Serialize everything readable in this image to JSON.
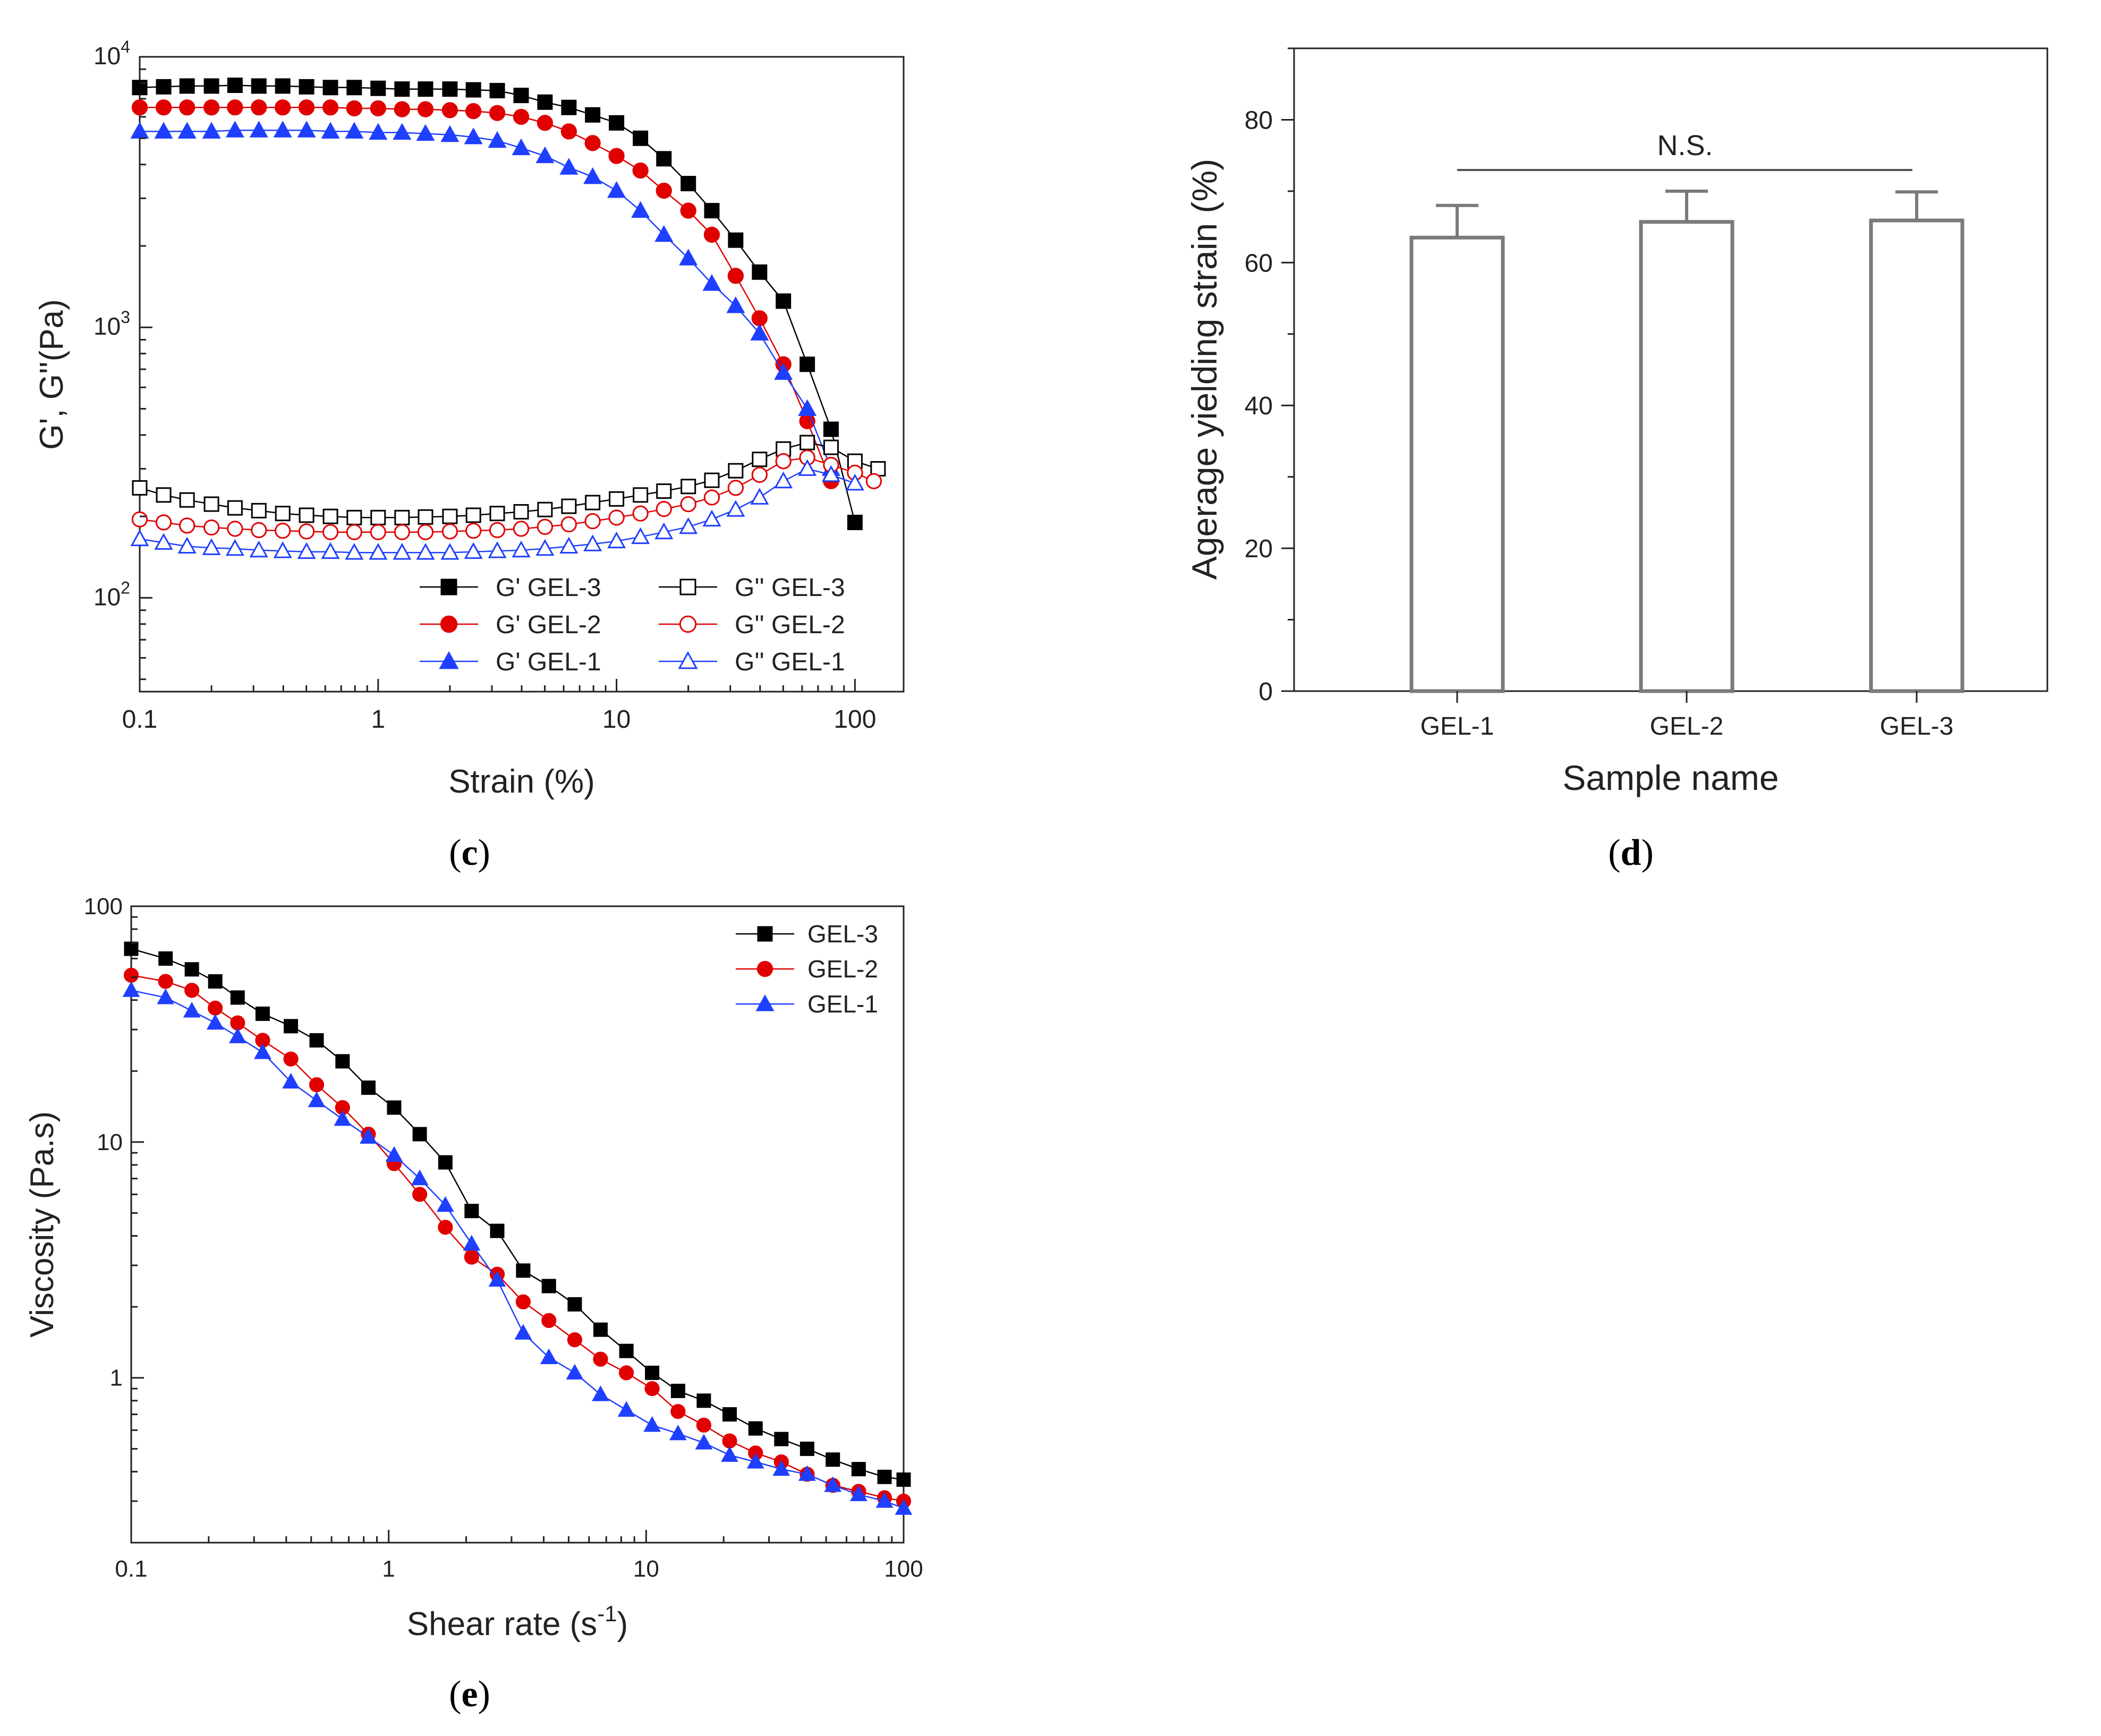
{
  "chart_data": [
    {
      "id": "c",
      "type": "scatter",
      "panel_label": "(c)",
      "panel_letter": "c",
      "xlabel": "Strain (%)",
      "ylabel": "G', G''(Pa)",
      "xscale": "log",
      "yscale": "log",
      "xlim": [
        0.1,
        160
      ],
      "ylim": [
        45,
        10000
      ],
      "xticks": [
        {
          "v": 0.1,
          "label": "0.1"
        },
        {
          "v": 1,
          "label": "1"
        },
        {
          "v": 10,
          "label": "10"
        },
        {
          "v": 100,
          "label": "100"
        }
      ],
      "yticks": [
        {
          "v": 100,
          "base": "10",
          "exp": "2"
        },
        {
          "v": 1000,
          "base": "10",
          "exp": "3"
        },
        {
          "v": 10000,
          "base": "10",
          "exp": "4"
        }
      ],
      "legend_position": "bottom-right",
      "series": [
        {
          "name": "G' GEL-3",
          "color": "#000000",
          "marker": "square",
          "filled": true,
          "x": [
            0.1,
            0.126,
            0.158,
            0.2,
            0.251,
            0.316,
            0.398,
            0.501,
            0.631,
            0.794,
            1,
            1.26,
            1.58,
            2,
            2.51,
            3.16,
            3.98,
            5.01,
            6.31,
            7.94,
            10,
            12.6,
            15.8,
            20,
            25.1,
            31.6,
            39.8,
            50.1,
            63.1,
            79.4,
            100
          ],
          "y": [
            7700,
            7750,
            7800,
            7800,
            7850,
            7800,
            7800,
            7750,
            7700,
            7700,
            7650,
            7600,
            7600,
            7600,
            7550,
            7500,
            7200,
            6800,
            6500,
            6100,
            5700,
            5000,
            4200,
            3400,
            2700,
            2100,
            1600,
            1250,
            730,
            420,
            190
          ]
        },
        {
          "name": "G' GEL-2",
          "color": "#e00000",
          "marker": "circle",
          "filled": true,
          "x": [
            0.1,
            0.126,
            0.158,
            0.2,
            0.251,
            0.316,
            0.398,
            0.501,
            0.631,
            0.794,
            1,
            1.26,
            1.58,
            2,
            2.51,
            3.16,
            3.98,
            5.01,
            6.31,
            7.94,
            10,
            12.6,
            15.8,
            20,
            25.1,
            31.6,
            39.8,
            50.1,
            63.1,
            79.4
          ],
          "y": [
            6500,
            6500,
            6500,
            6500,
            6500,
            6500,
            6500,
            6500,
            6500,
            6450,
            6450,
            6400,
            6400,
            6350,
            6300,
            6200,
            6000,
            5700,
            5300,
            4800,
            4300,
            3800,
            3200,
            2700,
            2200,
            1550,
            1080,
            730,
            450,
            270
          ]
        },
        {
          "name": "G' GEL-1",
          "color": "#1f3fff",
          "marker": "triangle",
          "filled": true,
          "x": [
            0.1,
            0.126,
            0.158,
            0.2,
            0.251,
            0.316,
            0.398,
            0.501,
            0.631,
            0.794,
            1,
            1.26,
            1.58,
            2,
            2.51,
            3.16,
            3.98,
            5.01,
            6.31,
            7.94,
            10,
            12.6,
            15.8,
            20,
            25.1,
            31.6,
            39.8,
            50.1,
            63.1,
            79.4
          ],
          "y": [
            5300,
            5300,
            5300,
            5300,
            5350,
            5350,
            5350,
            5350,
            5300,
            5300,
            5250,
            5250,
            5200,
            5150,
            5050,
            4900,
            4600,
            4300,
            3900,
            3600,
            3200,
            2700,
            2200,
            1800,
            1450,
            1200,
            950,
            680,
            500,
            300
          ]
        },
        {
          "name": "G'' GEL-3",
          "color": "#000000",
          "marker": "square",
          "filled": false,
          "x": [
            0.1,
            0.126,
            0.158,
            0.2,
            0.251,
            0.316,
            0.398,
            0.501,
            0.631,
            0.794,
            1,
            1.26,
            1.58,
            2,
            2.51,
            3.16,
            3.98,
            5.01,
            6.31,
            7.94,
            10,
            12.6,
            15.8,
            20,
            25.1,
            31.6,
            39.8,
            50.1,
            63.1,
            79.4,
            100,
            125
          ],
          "y": [
            255,
            240,
            230,
            222,
            215,
            210,
            205,
            202,
            200,
            198,
            198,
            198,
            199,
            200,
            202,
            205,
            208,
            212,
            218,
            225,
            232,
            240,
            248,
            258,
            272,
            295,
            325,
            355,
            375,
            360,
            320,
            300
          ]
        },
        {
          "name": "G'' GEL-2",
          "color": "#e00000",
          "marker": "circle",
          "filled": false,
          "x": [
            0.1,
            0.126,
            0.158,
            0.2,
            0.251,
            0.316,
            0.398,
            0.501,
            0.631,
            0.794,
            1,
            1.26,
            1.58,
            2,
            2.51,
            3.16,
            3.98,
            5.01,
            6.31,
            7.94,
            10,
            12.6,
            15.8,
            20,
            25.1,
            31.6,
            39.8,
            50.1,
            63.1,
            79.4,
            100,
            120
          ],
          "y": [
            195,
            190,
            185,
            182,
            180,
            178,
            177,
            176,
            175,
            175,
            175,
            175,
            175,
            176,
            177,
            178,
            180,
            183,
            187,
            192,
            198,
            205,
            213,
            222,
            235,
            255,
            285,
            320,
            330,
            310,
            290,
            270
          ]
        },
        {
          "name": "G'' GEL-1",
          "color": "#1f3fff",
          "marker": "triangle",
          "filled": false,
          "x": [
            0.1,
            0.126,
            0.158,
            0.2,
            0.251,
            0.316,
            0.398,
            0.501,
            0.631,
            0.794,
            1,
            1.26,
            1.58,
            2,
            2.51,
            3.16,
            3.98,
            5.01,
            6.31,
            7.94,
            10,
            12.6,
            15.8,
            20,
            25.1,
            31.6,
            39.8,
            50.1,
            63.1,
            79.4,
            100
          ],
          "y": [
            165,
            160,
            155,
            153,
            152,
            150,
            149,
            148,
            148,
            147,
            147,
            147,
            147,
            147,
            148,
            149,
            150,
            152,
            155,
            158,
            162,
            168,
            175,
            183,
            195,
            212,
            235,
            270,
            300,
            285,
            265
          ]
        }
      ]
    },
    {
      "id": "d",
      "type": "bar",
      "panel_label": "(d)",
      "panel_letter": "d",
      "xlabel": "Sample name",
      "ylabel": "Agerage yielding strain (%)",
      "ylim": [
        0,
        90
      ],
      "yticks": [
        0,
        20,
        40,
        60,
        80
      ],
      "categories": [
        "GEL-1",
        "GEL-2",
        "GEL-3"
      ],
      "values": [
        63.5,
        65.7,
        65.9
      ],
      "errors": [
        4.5,
        4.3,
        4.0
      ],
      "annotation": "N.S.",
      "bar_color": "#7a7a7a"
    },
    {
      "id": "e",
      "type": "line",
      "panel_label": "(e)",
      "panel_letter": "e",
      "xlabel_main": "Shear rate (s",
      "xlabel_sup": "-1",
      "xlabel_end": ")",
      "ylabel": "Viscosity (Pa.s)",
      "xscale": "log",
      "yscale": "log",
      "xlim": [
        0.1,
        100
      ],
      "ylim": [
        0.2,
        100
      ],
      "xticks": [
        {
          "v": 0.1,
          "label": "0.1"
        },
        {
          "v": 1,
          "label": "1"
        },
        {
          "v": 10,
          "label": "10"
        },
        {
          "v": 100,
          "label": "100"
        }
      ],
      "yticks": [
        {
          "v": 1,
          "label": "1"
        },
        {
          "v": 10,
          "label": "10"
        },
        {
          "v": 100,
          "label": "100"
        }
      ],
      "legend_position": "top-right",
      "series": [
        {
          "name": "GEL-3",
          "color": "#000000",
          "marker": "square",
          "filled": true,
          "x": [
            0.1,
            0.136,
            0.172,
            0.212,
            0.259,
            0.324,
            0.417,
            0.525,
            0.662,
            0.834,
            1.05,
            1.32,
            1.66,
            2.1,
            2.64,
            3.33,
            4.19,
            5.28,
            6.65,
            8.38,
            10.55,
            13.3,
            16.75,
            21.1,
            26.6,
            33.5,
            42.2,
            53.1,
            66.9,
            84.3,
            100
          ],
          "y": [
            66,
            60,
            54,
            48,
            41,
            35,
            31,
            27,
            22,
            17,
            14,
            10.8,
            8.2,
            5.1,
            4.2,
            2.85,
            2.45,
            2.05,
            1.6,
            1.3,
            1.05,
            0.88,
            0.8,
            0.7,
            0.61,
            0.55,
            0.5,
            0.45,
            0.41,
            0.38,
            0.37
          ]
        },
        {
          "name": "GEL-2",
          "color": "#e00000",
          "marker": "circle",
          "filled": true,
          "x": [
            0.1,
            0.136,
            0.172,
            0.212,
            0.259,
            0.324,
            0.417,
            0.525,
            0.662,
            0.834,
            1.05,
            1.32,
            1.66,
            2.1,
            2.64,
            3.33,
            4.19,
            5.28,
            6.65,
            8.38,
            10.55,
            13.3,
            16.75,
            21.1,
            26.6,
            33.5,
            42.2,
            53.1,
            66.9,
            84.3,
            100
          ],
          "y": [
            51,
            48,
            44,
            37,
            32,
            27,
            22.5,
            17.5,
            14,
            10.8,
            8.1,
            6,
            4.35,
            3.25,
            2.75,
            2.1,
            1.75,
            1.45,
            1.2,
            1.05,
            0.9,
            0.72,
            0.63,
            0.54,
            0.48,
            0.44,
            0.39,
            0.35,
            0.33,
            0.31,
            0.3
          ]
        },
        {
          "name": "GEL-1",
          "color": "#1f3fff",
          "marker": "triangle",
          "filled": true,
          "x": [
            0.1,
            0.136,
            0.172,
            0.212,
            0.259,
            0.324,
            0.417,
            0.525,
            0.662,
            0.834,
            1.05,
            1.32,
            1.66,
            2.1,
            2.64,
            3.33,
            4.19,
            5.28,
            6.65,
            8.38,
            10.55,
            13.3,
            16.75,
            21.1,
            26.6,
            33.5,
            42.2,
            53.1,
            66.9,
            84.3,
            100
          ],
          "y": [
            44,
            41,
            36,
            32,
            28,
            24,
            18,
            15,
            12.5,
            10.5,
            8.8,
            7,
            5.4,
            3.7,
            2.6,
            1.55,
            1.22,
            1.05,
            0.85,
            0.73,
            0.63,
            0.58,
            0.53,
            0.47,
            0.44,
            0.41,
            0.39,
            0.35,
            0.32,
            0.3,
            0.28
          ]
        }
      ]
    }
  ]
}
